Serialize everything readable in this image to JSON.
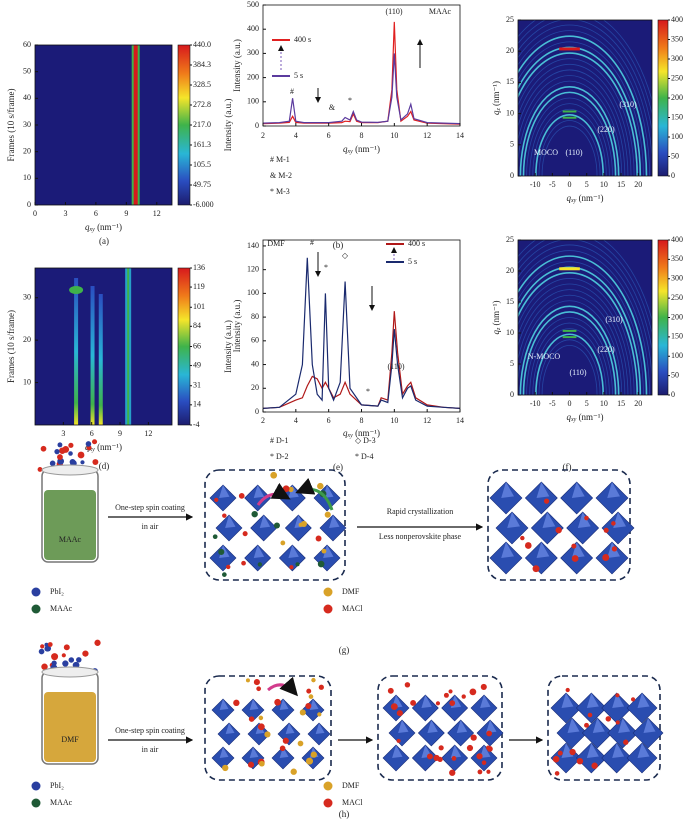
{
  "panels": [
    {
      "label": "(a)",
      "type": "heatmap",
      "xlim": [
        0,
        13.5
      ],
      "ylim": [
        0,
        60
      ],
      "xticks": [
        0,
        3,
        6,
        9,
        12
      ],
      "yticks": [
        0,
        10,
        20,
        30,
        40,
        50,
        60
      ],
      "xlabel": {
        "symbol": "q",
        "subscript": "xy",
        "unit": " (nm⁻¹)"
      },
      "ylabel": "Frames (10 s/frame)",
      "colorbar": {
        "label": "Intensity (a.u.)",
        "clim": [
          -6,
          440
        ],
        "ticks": [
          {
            "value": 440,
            "label": "440.0"
          },
          384.3,
          328.5,
          272.8,
          {
            "value": 217,
            "label": "217.0"
          },
          161.3,
          105.5,
          49.75,
          {
            "value": -6,
            "label": "-6.000"
          }
        ]
      }
    },
    {
      "label": "(b)",
      "type": "line",
      "xlim": [
        2,
        14
      ],
      "ylim": [
        0,
        500
      ],
      "xticks": [
        2,
        4,
        6,
        8,
        10,
        12,
        14
      ],
      "yticks": [
        0,
        100,
        200,
        300,
        400,
        500
      ],
      "xlabel": {
        "symbol": "q",
        "subscript": "xy",
        "unit": " (nm⁻¹)"
      },
      "ylabel": "Intensity (a.u.)",
      "annotations": [
        "(110)",
        "MAAc",
        "#",
        "&",
        "*"
      ],
      "legend": [
        "# M-1",
        "& M-2",
        "* M-3"
      ],
      "series": [
        {
          "name": "400 s",
          "color": "#e02020",
          "x": [
            2,
            3,
            3.6,
            3.8,
            4,
            4.5,
            5,
            6,
            6.8,
            7,
            7.3,
            7.5,
            7.7,
            8,
            9,
            9.6,
            9.85,
            10,
            10.15,
            10.4,
            10.8,
            11,
            11.2,
            12,
            13,
            14
          ],
          "values": [
            10,
            12,
            15,
            40,
            15,
            12,
            12,
            12,
            14,
            20,
            18,
            50,
            20,
            14,
            14,
            20,
            150,
            430,
            150,
            20,
            40,
            60,
            25,
            12,
            10,
            8
          ]
        },
        {
          "name": "5 s",
          "color": "#5b3b9e",
          "x": [
            2,
            3,
            3.6,
            3.8,
            4,
            4.5,
            5,
            6,
            6.8,
            7,
            7.3,
            7.5,
            7.7,
            8,
            9,
            9.6,
            9.85,
            10,
            10.15,
            10.4,
            10.8,
            11,
            11.2,
            12,
            13,
            14
          ],
          "values": [
            12,
            14,
            20,
            115,
            20,
            14,
            14,
            14,
            20,
            35,
            25,
            60,
            25,
            16,
            15,
            20,
            120,
            300,
            120,
            25,
            50,
            90,
            30,
            14,
            12,
            10
          ]
        }
      ]
    },
    {
      "label": "(c)",
      "type": "giwaxs",
      "xlim": [
        -15,
        24
      ],
      "ylim": [
        0,
        25
      ],
      "xticks": [
        -10,
        -5,
        0,
        5,
        10,
        15,
        20
      ],
      "yticks": [
        0,
        5,
        10,
        15,
        20,
        25
      ],
      "xlabel": {
        "symbol": "q",
        "subscript": "xy",
        "unit": " (nm⁻¹)"
      },
      "ylabel": {
        "symbol": "q",
        "subscript": "z",
        "unit": " (nm⁻¹)"
      },
      "annotations": [
        "(310)",
        "(220)",
        "(110)",
        "MOCO"
      ],
      "colorbar": {
        "clim": [
          0,
          400
        ],
        "ticks": [
          0,
          50,
          100,
          150,
          200,
          250,
          300,
          350,
          400
        ]
      }
    },
    {
      "label": "(d)",
      "type": "heatmap",
      "xlim": [
        0,
        14.5
      ],
      "ylim": [
        0,
        37
      ],
      "xticks": [
        3,
        6,
        9,
        12
      ],
      "yticks": [
        10,
        20,
        30
      ],
      "xlabel": {
        "symbol": "q",
        "subscript": "xy",
        "unit": " (nm⁻¹)"
      },
      "ylabel": "Frames (10 s/frame)",
      "colorbar": {
        "label": "Intensity (a.u.)",
        "clim": [
          -4,
          136
        ],
        "ticks": [
          136,
          119,
          101,
          84,
          66,
          49,
          31,
          14,
          -4
        ]
      }
    },
    {
      "label": "(e)",
      "type": "line",
      "xlim": [
        2,
        14
      ],
      "ylim": [
        0,
        145
      ],
      "xticks": [
        2,
        4,
        6,
        8,
        10,
        12,
        14
      ],
      "yticks": [
        0,
        20,
        40,
        60,
        80,
        100,
        120,
        140
      ],
      "xlabel": {
        "symbol": "q",
        "subscript": "xy",
        "unit": " (nm⁻¹)"
      },
      "ylabel": "Intensity (a.u.)",
      "annotations": [
        "DMF",
        "#",
        "*",
        "◇",
        "*",
        "(110)"
      ],
      "legend": [
        "# D-1",
        "◇ D-3",
        "* D-2",
        "* D-4"
      ],
      "series": [
        {
          "name": "400 s",
          "color": "#b01818",
          "x": [
            2,
            3,
            4,
            4.4,
            4.7,
            5,
            5.3,
            5.6,
            5.8,
            6,
            6.3,
            6.7,
            7,
            7.3,
            8,
            9,
            9.2,
            9.6,
            9.85,
            10,
            10.2,
            10.5,
            10.8,
            11,
            11.3,
            12,
            13,
            14
          ],
          "values": [
            3,
            4,
            10,
            12,
            22,
            30,
            28,
            20,
            25,
            20,
            12,
            15,
            25,
            15,
            6,
            5,
            12,
            10,
            50,
            85,
            50,
            15,
            22,
            25,
            12,
            6,
            4,
            3
          ]
        },
        {
          "name": "5 s",
          "color": "#1a2a6e",
          "x": [
            2,
            3,
            4,
            4.4,
            4.7,
            5,
            5.3,
            5.6,
            5.8,
            6,
            6.3,
            6.7,
            7,
            7.3,
            8,
            9,
            9.2,
            9.6,
            9.85,
            10,
            10.2,
            10.5,
            10.8,
            11,
            11.3,
            12,
            13,
            14
          ],
          "values": [
            3,
            4,
            15,
            40,
            130,
            40,
            15,
            10,
            100,
            20,
            10,
            25,
            110,
            20,
            6,
            5,
            10,
            8,
            40,
            70,
            40,
            12,
            20,
            22,
            10,
            5,
            4,
            3
          ]
        }
      ]
    },
    {
      "label": "(f)",
      "type": "giwaxs",
      "xlim": [
        -15,
        24
      ],
      "ylim": [
        0,
        25
      ],
      "xticks": [
        -10,
        -5,
        0,
        5,
        10,
        15,
        20
      ],
      "yticks": [
        0,
        5,
        10,
        15,
        20,
        25
      ],
      "xlabel": {
        "symbol": "q",
        "subscript": "xy",
        "unit": " (nm⁻¹)"
      },
      "ylabel": {
        "symbol": "q",
        "subscript": "z",
        "unit": " (nm⁻¹)"
      },
      "annotations": [
        "(310)",
        "(220)",
        "(110)",
        "N-MOCO"
      ],
      "colorbar": {
        "clim": [
          0,
          400
        ],
        "ticks": [
          0,
          50,
          100,
          150,
          200,
          250,
          300,
          350,
          400
        ]
      }
    }
  ],
  "schematics": [
    {
      "label": "(g)",
      "vial_label": "MAAc",
      "step1": "One-step spin coating",
      "step1_sub": "in air",
      "step2": "Rapid crystallization",
      "step2_sub": "Less nonperovskite phase",
      "legend": [
        "PbI₂",
        "MAAc",
        "DMF",
        "MACl"
      ]
    },
    {
      "label": "(h)",
      "vial_label": "DMF",
      "step1": "One-step spin coating",
      "step1_sub": "in air",
      "legend": [
        "PbI₂",
        "MAAc",
        "DMF",
        "MACl"
      ]
    }
  ]
}
